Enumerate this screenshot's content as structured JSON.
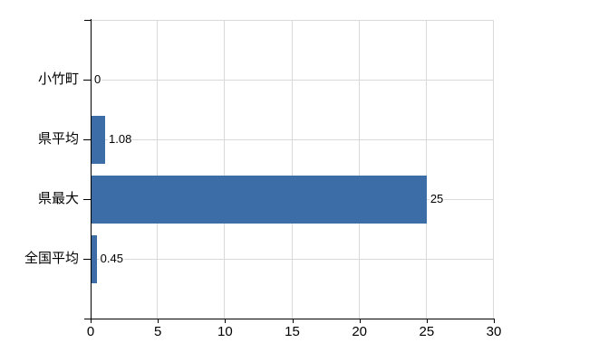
{
  "chart_data": {
    "type": "bar",
    "orientation": "horizontal",
    "title": "",
    "categories": [
      "小竹町",
      "県平均",
      "県最大",
      "全国平均"
    ],
    "values": [
      0,
      1.08,
      25,
      0.45
    ],
    "value_labels": [
      "0",
      "1.08",
      "25",
      "0.45"
    ],
    "x_tick_labels": [
      "0",
      "5",
      "10",
      "15",
      "20",
      "25",
      "30"
    ],
    "x_tick_values": [
      0,
      5,
      10,
      15,
      20,
      25,
      30
    ],
    "xlim": [
      0,
      30
    ],
    "grid": "on",
    "legend": "none",
    "colors": {
      "bar": "#3c6da6",
      "grid": "#d9d9d9",
      "axis": "#000000",
      "text": "#000000",
      "background": "#ffffff"
    }
  }
}
